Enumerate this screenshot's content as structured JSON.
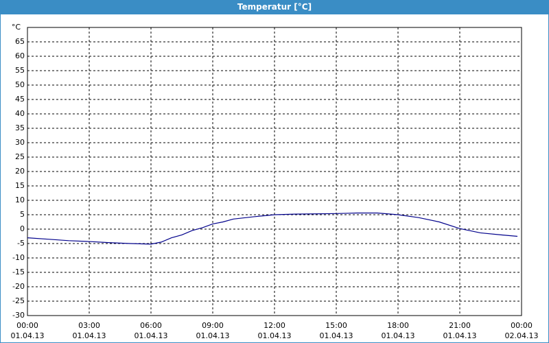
{
  "chart_data": {
    "type": "line",
    "title": "Temperatur [°C]",
    "y_label": "°C",
    "series": [
      {
        "name": "Temperatur",
        "color": "#00008b",
        "x": [
          0,
          1,
          2,
          3,
          4,
          5,
          6,
          6.5,
          7,
          7.5,
          8,
          8.5,
          9,
          9.5,
          10,
          11,
          12,
          13,
          14,
          15,
          16,
          17,
          18,
          19,
          20,
          21,
          22,
          23,
          23.8
        ],
        "values": [
          -3,
          -3.5,
          -4,
          -4.3,
          -4.7,
          -5,
          -5.2,
          -4.5,
          -3,
          -2,
          -0.5,
          0.5,
          1.8,
          2.5,
          3.5,
          4.3,
          5,
          5.2,
          5.3,
          5.4,
          5.6,
          5.6,
          5,
          4,
          2.5,
          0.2,
          -1.3,
          -2,
          -2.5
        ]
      }
    ],
    "xlim": [
      0,
      24
    ],
    "ylim": [
      -30,
      70
    ],
    "yticks": [
      -30,
      -25,
      -20,
      -15,
      -10,
      -5,
      0,
      5,
      10,
      15,
      20,
      25,
      30,
      35,
      40,
      45,
      50,
      55,
      60,
      65
    ],
    "xticks": [
      {
        "value": 0,
        "label": [
          "00:00",
          "01.04.13"
        ]
      },
      {
        "value": 3,
        "label": [
          "03:00",
          "01.04.13"
        ]
      },
      {
        "value": 6,
        "label": [
          "06:00",
          "01.04.13"
        ]
      },
      {
        "value": 9,
        "label": [
          "09:00",
          "01.04.13"
        ]
      },
      {
        "value": 12,
        "label": [
          "12:00",
          "01.04.13"
        ]
      },
      {
        "value": 15,
        "label": [
          "15:00",
          "01.04.13"
        ]
      },
      {
        "value": 18,
        "label": [
          "18:00",
          "01.04.13"
        ]
      },
      {
        "value": 21,
        "label": [
          "21:00",
          "01.04.13"
        ]
      },
      {
        "value": 24,
        "label": [
          "00:00",
          "02.04.13"
        ]
      }
    ],
    "grid": true
  }
}
